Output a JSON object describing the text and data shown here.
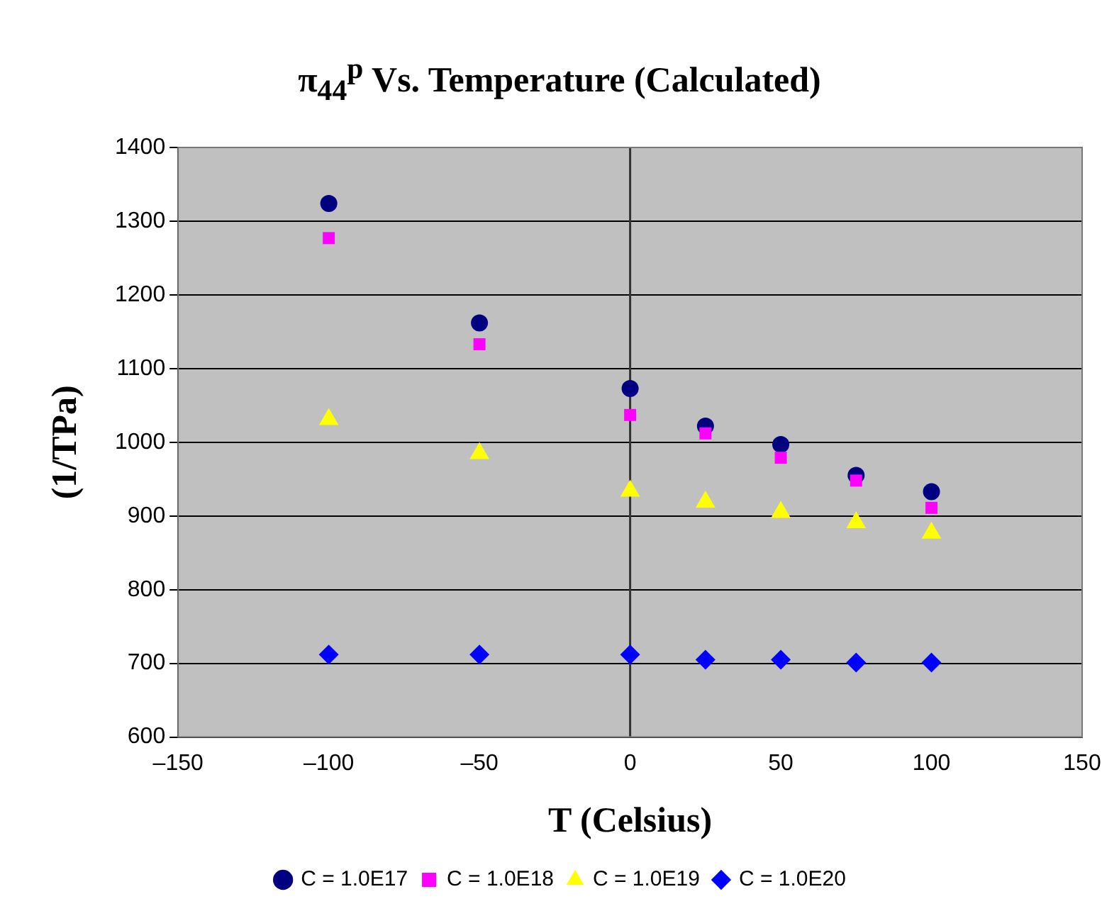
{
  "chart_data": {
    "type": "scatter",
    "title": "π$_{44}$$^{p}$ Vs. Temperature (Calculated)",
    "xlabel": "T (Celsius)",
    "ylabel": "(1/TPa)",
    "x": [
      -100,
      -50,
      0,
      25,
      50,
      75,
      100
    ],
    "series": [
      {
        "name": "C = 1.0E17",
        "color": "#000080",
        "marker": "circle",
        "values": [
          1324,
          1162,
          1073,
          1022,
          997,
          955,
          933
        ]
      },
      {
        "name": "C = 1.0E18",
        "color": "#ff00ff",
        "marker": "square",
        "values": [
          1277,
          1133,
          1037,
          1012,
          979,
          948,
          911
        ]
      },
      {
        "name": "C = 1.0E19",
        "color": "#ffff00",
        "marker": "triangle",
        "values": [
          1031,
          985,
          934,
          919,
          905,
          891,
          877
        ]
      },
      {
        "name": "C = 1.0E20",
        "color": "#0000ff",
        "marker": "diamond",
        "values": [
          712,
          712,
          712,
          705,
          705,
          701,
          701
        ]
      }
    ],
    "xlim": [
      -150,
      150
    ],
    "xticks": [
      {
        "value": -150,
        "label": "–150"
      },
      {
        "value": -100,
        "label": "–100"
      },
      {
        "value": -50,
        "label": "–50"
      },
      0,
      50,
      100,
      150
    ],
    "ylim": [
      600,
      1400
    ],
    "yticks": [
      600,
      700,
      800,
      900,
      1000,
      1100,
      1200,
      1300,
      1400
    ],
    "grid": "y",
    "legend": "bottom"
  }
}
